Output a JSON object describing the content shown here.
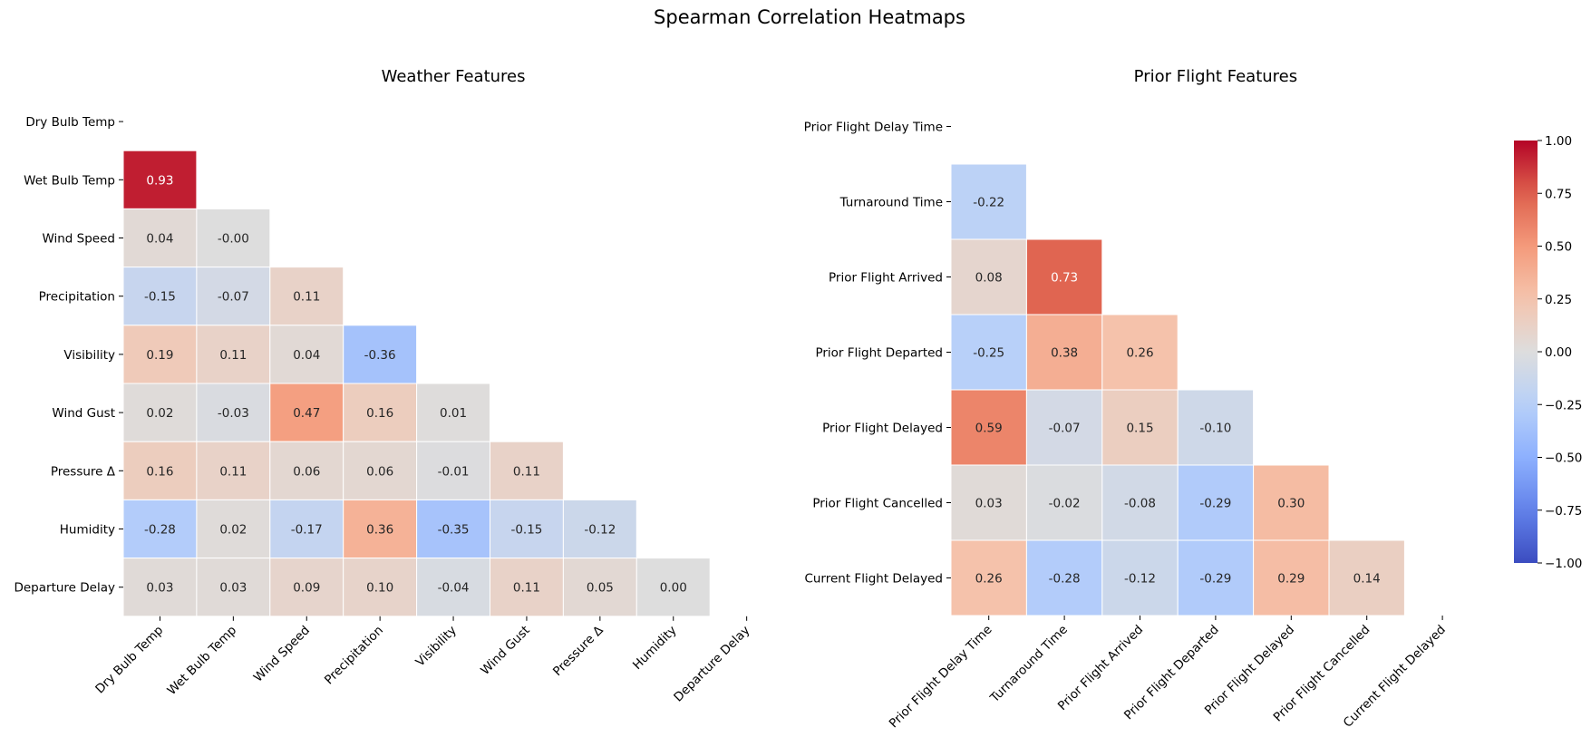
{
  "figure": {
    "suptitle": "Spearman Correlation Heatmaps"
  },
  "colorbar": {
    "min": -1.0,
    "max": 1.0,
    "ticks": [
      "1.00",
      "0.75",
      "0.50",
      "0.25",
      "0.00",
      "−0.25",
      "−0.50",
      "−0.75",
      "−1.00"
    ],
    "colormap": "coolwarm"
  },
  "chart_data": [
    {
      "type": "heatmap",
      "title": "Weather Features",
      "mask": "upper-triangle-including-diagonal",
      "labels": [
        "Dry Bulb Temp",
        "Wet Bulb Temp",
        "Wind Speed",
        "Precipitation",
        "Visibility",
        "Wind Gust",
        "Pressure Δ",
        "Humidity",
        "Departure Delay"
      ],
      "values": [
        [
          null,
          null,
          null,
          null,
          null,
          null,
          null,
          null,
          null
        ],
        [
          0.93,
          null,
          null,
          null,
          null,
          null,
          null,
          null,
          null
        ],
        [
          0.04,
          -0.0,
          null,
          null,
          null,
          null,
          null,
          null,
          null
        ],
        [
          -0.15,
          -0.07,
          0.11,
          null,
          null,
          null,
          null,
          null,
          null
        ],
        [
          0.19,
          0.11,
          0.04,
          -0.36,
          null,
          null,
          null,
          null,
          null
        ],
        [
          0.02,
          -0.03,
          0.47,
          0.16,
          0.01,
          null,
          null,
          null,
          null
        ],
        [
          0.16,
          0.11,
          0.06,
          0.06,
          -0.01,
          0.11,
          null,
          null,
          null
        ],
        [
          -0.28,
          0.02,
          -0.17,
          0.36,
          -0.35,
          -0.15,
          -0.12,
          null,
          null
        ],
        [
          0.03,
          0.03,
          0.09,
          0.1,
          -0.04,
          0.11,
          0.05,
          0.0,
          null
        ]
      ],
      "vmin": -1,
      "vmax": 1
    },
    {
      "type": "heatmap",
      "title": "Prior Flight Features",
      "mask": "upper-triangle-including-diagonal",
      "labels": [
        "Prior Flight Delay Time",
        "Turnaround Time",
        "Prior Flight Arrived",
        "Prior Flight Departed",
        "Prior Flight Delayed",
        "Prior Flight Cancelled",
        "Current Flight Delayed"
      ],
      "values": [
        [
          null,
          null,
          null,
          null,
          null,
          null,
          null
        ],
        [
          -0.22,
          null,
          null,
          null,
          null,
          null,
          null
        ],
        [
          0.08,
          0.73,
          null,
          null,
          null,
          null,
          null
        ],
        [
          -0.25,
          0.38,
          0.26,
          null,
          null,
          null,
          null
        ],
        [
          0.59,
          -0.07,
          0.15,
          -0.1,
          null,
          null,
          null
        ],
        [
          0.03,
          -0.02,
          -0.08,
          -0.29,
          0.3,
          null,
          null
        ],
        [
          0.26,
          -0.28,
          -0.12,
          -0.29,
          0.29,
          0.14,
          null
        ]
      ],
      "vmin": -1,
      "vmax": 1
    }
  ]
}
